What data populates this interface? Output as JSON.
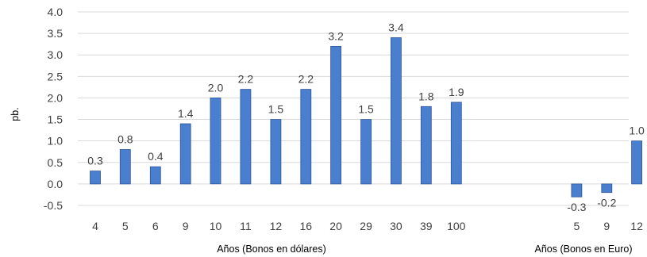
{
  "chart_data": {
    "type": "bar",
    "ylabel": "pb.",
    "ylim": [
      -0.5,
      4.0
    ],
    "ytick_step": 0.5,
    "grid": true,
    "bar_color": "#4a7fd0",
    "groups": [
      {
        "xlabel": "Años (Bonos en dólares)",
        "categories": [
          "4",
          "5",
          "6",
          "9",
          "10",
          "11",
          "12",
          "16",
          "20",
          "29",
          "30",
          "39",
          "100"
        ],
        "values": [
          0.3,
          0.8,
          0.4,
          1.4,
          2.0,
          2.2,
          1.5,
          2.2,
          3.2,
          1.5,
          3.4,
          1.8,
          1.9
        ],
        "data_labels": [
          "0.3",
          "0.8",
          "0.4",
          "1.4",
          "2.0",
          "2.2",
          "1.5",
          "2.2",
          "3.2",
          "1.5",
          "3.4",
          "1.8",
          "1.9"
        ]
      },
      {
        "xlabel": "Años (Bonos en Euro)",
        "categories": [
          "5",
          "9",
          "12"
        ],
        "values": [
          -0.3,
          -0.2,
          1.0
        ],
        "data_labels": [
          "-0.3",
          "-0.2",
          "1.0"
        ]
      }
    ]
  }
}
